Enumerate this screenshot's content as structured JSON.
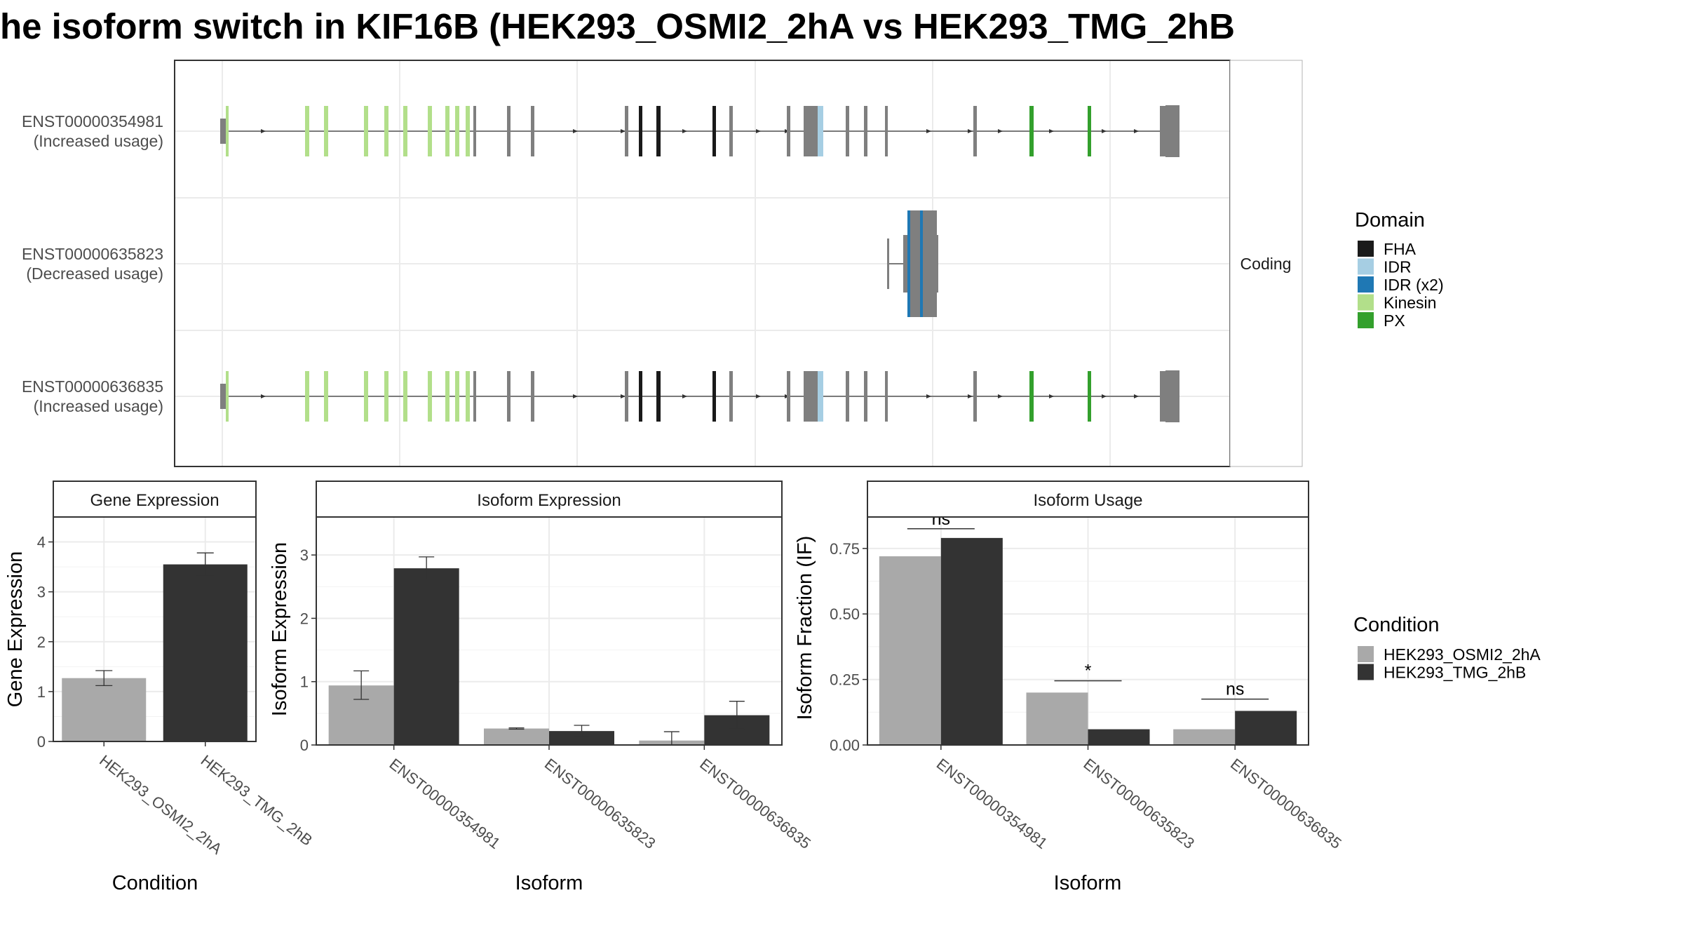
{
  "title": "he isoform switch in KIF16B (HEK293_OSMI2_2hA vs HEK293_TMG_2hB",
  "structure": {
    "strip": "Coding",
    "isoforms": [
      {
        "id": "ENST00000354981",
        "usage": "(Increased usage)"
      },
      {
        "id": "ENST00000635823",
        "usage": "(Decreased usage)"
      },
      {
        "id": "ENST00000636835",
        "usage": "(Increased usage)"
      }
    ],
    "domain_colors": {
      "FHA": "#1a1a1a",
      "IDR": "#a6cee3",
      "IDR (x2)": "#1f78b4",
      "Kinesin": "#b2df8a",
      "PX": "#33a02c",
      "none": "#7f7f7f"
    }
  },
  "legend_domain": {
    "title": "Domain",
    "items": [
      {
        "label": "FHA",
        "color": "#1a1a1a"
      },
      {
        "label": "IDR",
        "color": "#a6cee3"
      },
      {
        "label": "IDR (x2)",
        "color": "#1f78b4"
      },
      {
        "label": "Kinesin",
        "color": "#b2df8a"
      },
      {
        "label": "PX",
        "color": "#33a02c"
      }
    ]
  },
  "legend_condition": {
    "title": "Condition",
    "items": [
      {
        "label": "HEK293_OSMI2_2hA",
        "color": "#a9a9a9"
      },
      {
        "label": "HEK293_TMG_2hB",
        "color": "#333333"
      }
    ]
  },
  "chart_data": [
    {
      "type": "bar",
      "title": "Gene Expression",
      "xlabel": "Condition",
      "ylabel": "Gene Expression",
      "categories": [
        "HEK293_OSMI2_2hA",
        "HEK293_TMG_2hB"
      ],
      "values": [
        1.27,
        3.55
      ],
      "errors": [
        [
          1.12,
          1.42
        ],
        [
          3.32,
          3.78
        ]
      ],
      "colors": [
        "#a9a9a9",
        "#333333"
      ],
      "ylim": [
        0,
        4.5
      ],
      "yticks": [
        0,
        1,
        2,
        3,
        4
      ],
      "ytick_labels": [
        "0",
        "1",
        "2",
        "3",
        "4"
      ],
      "grid": true
    },
    {
      "type": "bar",
      "title": "Isoform Expression",
      "xlabel": "Isoform",
      "ylabel": "Isoform Expression",
      "categories": [
        "ENST00000354981",
        "ENST00000635823",
        "ENST00000636835"
      ],
      "series": [
        {
          "name": "HEK293_OSMI2_2hA",
          "color": "#a9a9a9",
          "values": [
            0.94,
            0.26,
            0.07
          ],
          "errors": [
            [
              0.72,
              1.17
            ],
            [
              0.25,
              0.27
            ],
            [
              0.0,
              0.21
            ]
          ]
        },
        {
          "name": "HEK293_TMG_2hB",
          "color": "#333333",
          "values": [
            2.79,
            0.22,
            0.47
          ],
          "errors": [
            [
              2.61,
              2.97
            ],
            [
              0.13,
              0.31
            ],
            [
              0.25,
              0.69
            ]
          ]
        }
      ],
      "ylim": [
        0,
        3.6
      ],
      "yticks": [
        0,
        1,
        2,
        3
      ],
      "ytick_labels": [
        "0",
        "1",
        "2",
        "3"
      ],
      "grid": true
    },
    {
      "type": "bar",
      "title": "Isoform Usage",
      "xlabel": "Isoform",
      "ylabel": "Isoform Fraction (IF)",
      "categories": [
        "ENST00000354981",
        "ENST00000635823",
        "ENST00000636835"
      ],
      "series": [
        {
          "name": "HEK293_OSMI2_2hA",
          "color": "#a9a9a9",
          "values": [
            0.72,
            0.2,
            0.06
          ]
        },
        {
          "name": "HEK293_TMG_2hB",
          "color": "#333333",
          "values": [
            0.79,
            0.06,
            0.13
          ]
        }
      ],
      "annotations": [
        {
          "category": "ENST00000354981",
          "text": "ns",
          "y": 0.825
        },
        {
          "category": "ENST00000635823",
          "text": "*",
          "y": 0.245
        },
        {
          "category": "ENST00000636835",
          "text": "ns",
          "y": 0.175
        }
      ],
      "ylim": [
        0,
        0.87
      ],
      "yticks": [
        0,
        0.25,
        0.5,
        0.75
      ],
      "ytick_labels": [
        "0.00",
        "0.25",
        "0.50",
        "0.75"
      ],
      "grid": true
    }
  ]
}
